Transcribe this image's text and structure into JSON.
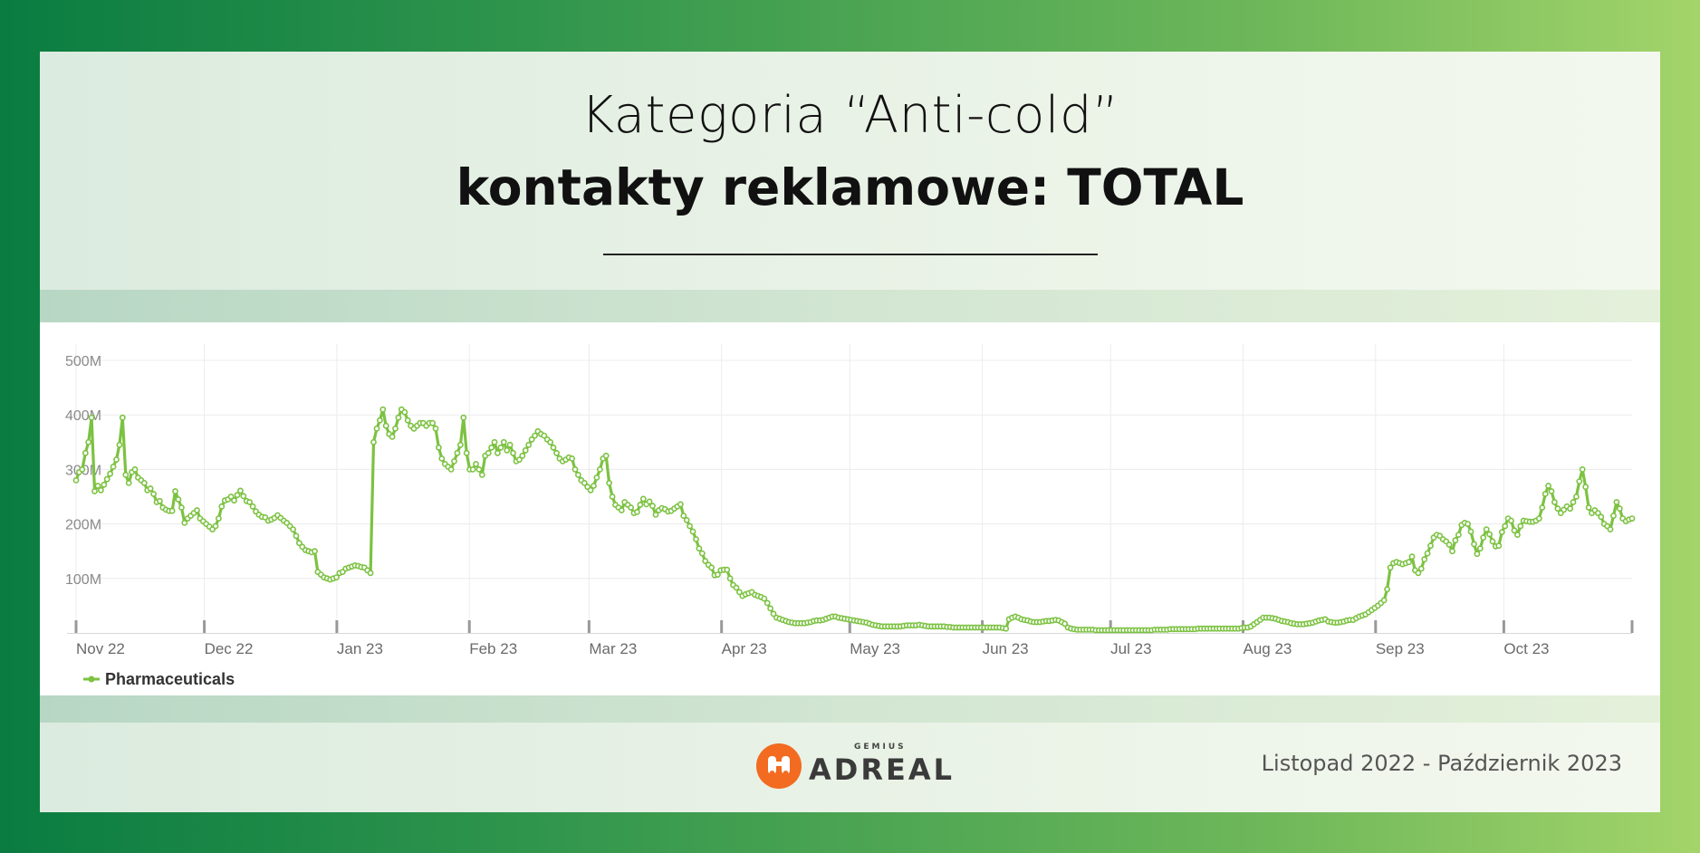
{
  "title_line1": "Kategoria “Anti-cold”",
  "title_line2": "kontakty reklamowe: TOTAL",
  "footer": {
    "brand_small": "GEMIUS",
    "brand_big": "ADREAL",
    "period": "Listopad 2022 - Październik 2023"
  },
  "colors": {
    "series": "#7cc242",
    "logo": "#f26b21"
  },
  "icons": {
    "logo": "binoculars-icon"
  },
  "chart_data": {
    "type": "line",
    "x_ticks": [
      "Nov 22",
      "Dec 22",
      "Jan 23",
      "Feb 23",
      "Mar 23",
      "Apr 23",
      "May 23",
      "Jun 23",
      "Jul 23",
      "Aug 23",
      "Sep 23",
      "Oct 23"
    ],
    "y_ticks": [
      "100M",
      "200M",
      "300M",
      "400M",
      "500M"
    ],
    "ylim": [
      0,
      500
    ],
    "grid": true,
    "legend": "bottom-left",
    "series": [
      {
        "name": "Pharmaceuticals",
        "x_start": "2022-11-01",
        "x_end": "2023-10-31",
        "values_millions": [
          280,
          295,
          300,
          330,
          350,
          395,
          260,
          270,
          262,
          272,
          282,
          292,
          305,
          318,
          345,
          395,
          290,
          275,
          295,
          300,
          285,
          280,
          275,
          262,
          265,
          255,
          240,
          242,
          230,
          226,
          224,
          224,
          260,
          245,
          230,
          202,
          210,
          215,
          220,
          225,
          210,
          205,
          200,
          195,
          190,
          196,
          210,
          232,
          243,
          245,
          250,
          243,
          253,
          261,
          251,
          242,
          240,
          232,
          223,
          217,
          213,
          212,
          206,
          208,
          211,
          216,
          211,
          206,
          202,
          196,
          190,
          178,
          165,
          158,
          152,
          150,
          148,
          150,
          112,
          107,
          102,
          100,
          98,
          100,
          102,
          110,
          112,
          118,
          120,
          122,
          124,
          123,
          121,
          120,
          115,
          110,
          350,
          375,
          390,
          410,
          380,
          365,
          360,
          375,
          395,
          410,
          405,
          390,
          380,
          375,
          380,
          385,
          385,
          380,
          385,
          385,
          375,
          340,
          320,
          310,
          305,
          300,
          315,
          330,
          345,
          395,
          330,
          300,
          300,
          310,
          300,
          290,
          325,
          330,
          340,
          350,
          330,
          340,
          350,
          335,
          345,
          330,
          315,
          318,
          325,
          335,
          345,
          355,
          362,
          370,
          365,
          362,
          355,
          350,
          340,
          330,
          320,
          315,
          318,
          322,
          320,
          300,
          290,
          280,
          275,
          268,
          262,
          270,
          285,
          300,
          320,
          325,
          275,
          250,
          235,
          230,
          225,
          240,
          235,
          230,
          220,
          222,
          235,
          246,
          236,
          241,
          233,
          217,
          225,
          229,
          227,
          223,
          224,
          228,
          232,
          236,
          215,
          207,
          196,
          186,
          172,
          155,
          146,
          132,
          125,
          120,
          106,
          107,
          115,
          116,
          116,
          100,
          88,
          83,
          75,
          68,
          71,
          73,
          75,
          70,
          68,
          66,
          63,
          55,
          45,
          35,
          28,
          26,
          24,
          22,
          20,
          19,
          18,
          18,
          18,
          18,
          19,
          20,
          22,
          23,
          23,
          24,
          26,
          28,
          30,
          30,
          28,
          27,
          26,
          25,
          24,
          23,
          22,
          21,
          20,
          19,
          17,
          15,
          14,
          13,
          12,
          12,
          12,
          12,
          12,
          12,
          12,
          13,
          14,
          14,
          14,
          14,
          15,
          14,
          13,
          12,
          12,
          12,
          12,
          12,
          12,
          11,
          11,
          10,
          10,
          10,
          10,
          10,
          10,
          10,
          10,
          10,
          10,
          10,
          10,
          10,
          10,
          10,
          10,
          9,
          8,
          25,
          28,
          30,
          28,
          25,
          24,
          23,
          21,
          20,
          20,
          20,
          21,
          22,
          22,
          23,
          24,
          23,
          20,
          17,
          10,
          8,
          7,
          6,
          6,
          6,
          6,
          6,
          6,
          5,
          5,
          5,
          5,
          5,
          5,
          5,
          5,
          5,
          5,
          5,
          5,
          5,
          5,
          5,
          5,
          5,
          5,
          5,
          6,
          6,
          6,
          6,
          6,
          7,
          7,
          7,
          7,
          7,
          7,
          7,
          7,
          7,
          8,
          8,
          8,
          8,
          8,
          8,
          8,
          8,
          8,
          8,
          8,
          8,
          8,
          8,
          9,
          10,
          10,
          12,
          16,
          20,
          24,
          28,
          28,
          28,
          27,
          26,
          24,
          22,
          21,
          20,
          18,
          17,
          16,
          16,
          16,
          17,
          18,
          19,
          21,
          23,
          24,
          25,
          21,
          20,
          19,
          19,
          20,
          21,
          23,
          24,
          24,
          27,
          30,
          32,
          34,
          38,
          42,
          46,
          50,
          55,
          60,
          80,
          120,
          128,
          130,
          128,
          126,
          128,
          130,
          140,
          115,
          110,
          118,
          135,
          146,
          160,
          175,
          180,
          178,
          172,
          168,
          162,
          150,
          170,
          180,
          198,
          202,
          200,
          186,
          163,
          145,
          155,
          175,
          190,
          181,
          168,
          159,
          160,
          185,
          196,
          210,
          206,
          188,
          180,
          196,
          206,
          205,
          204,
          204,
          206,
          210,
          230,
          255,
          270,
          260,
          240,
          228,
          220,
          226,
          232,
          228,
          240,
          250,
          278,
          300,
          268,
          230,
          220,
          225,
          220,
          213,
          200,
          196,
          190,
          215,
          240,
          228,
          210,
          205,
          208,
          210
        ]
      }
    ]
  }
}
